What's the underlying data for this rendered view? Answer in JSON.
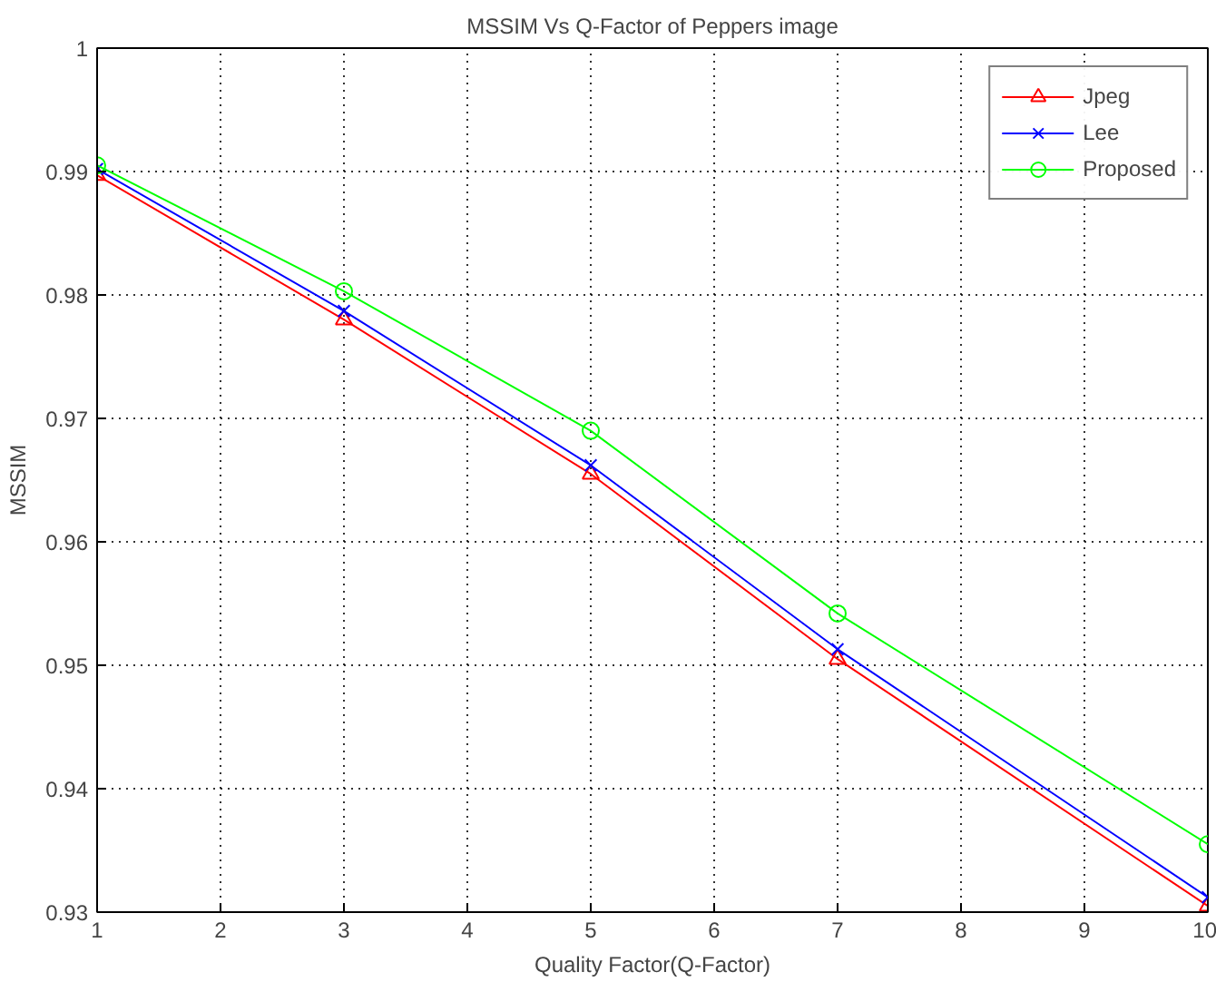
{
  "chart_data": {
    "type": "line",
    "title": "MSSIM Vs Q-Factor of Peppers image",
    "xlabel": "Quality Factor(Q-Factor)",
    "ylabel": "MSSIM",
    "x": [
      1,
      3,
      5,
      7,
      10
    ],
    "series": [
      {
        "name": "Jpeg",
        "color": "#ff0000",
        "marker": "triangle",
        "values": [
          0.9897,
          0.978,
          0.9655,
          0.9505,
          0.9305
        ]
      },
      {
        "name": "Lee",
        "color": "#0000ff",
        "marker": "cross",
        "values": [
          0.9902,
          0.9787,
          0.9662,
          0.9513,
          0.9312
        ]
      },
      {
        "name": "Proposed",
        "color": "#00ff00",
        "marker": "circle",
        "values": [
          0.9905,
          0.9803,
          0.969,
          0.9542,
          0.9355
        ]
      }
    ],
    "xlim": [
      1,
      10
    ],
    "ylim": [
      0.93,
      1
    ],
    "xticks": [
      1,
      2,
      3,
      4,
      5,
      6,
      7,
      8,
      9,
      10
    ],
    "yticks": [
      0.93,
      0.94,
      0.95,
      0.96,
      0.97,
      0.98,
      0.99,
      1
    ],
    "grid": true,
    "legend": "top right",
    "line_style": "solid"
  }
}
